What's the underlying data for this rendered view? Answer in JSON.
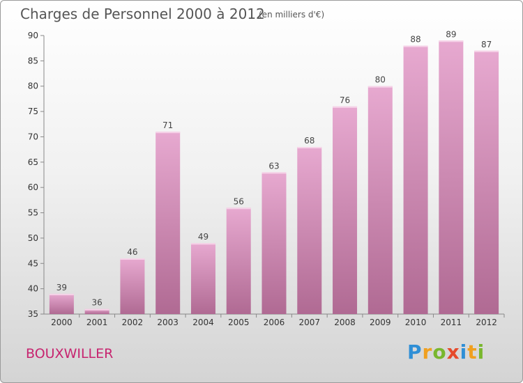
{
  "chart_data": {
    "type": "bar",
    "title": "Charges de Personnel 2000 à 2012",
    "subtitle": "(en milliers d'€)",
    "xlabel": "",
    "ylabel": "",
    "ylim": [
      35,
      90
    ],
    "yticks": [
      35,
      40,
      45,
      50,
      55,
      60,
      65,
      70,
      75,
      80,
      85,
      90
    ],
    "grid": false,
    "categories": [
      "2000",
      "2001",
      "2002",
      "2003",
      "2004",
      "2005",
      "2006",
      "2007",
      "2008",
      "2009",
      "2010",
      "2011",
      "2012"
    ],
    "values": [
      39,
      36,
      46,
      71,
      49,
      56,
      63,
      68,
      76,
      80,
      88,
      89,
      87
    ],
    "bar_color_top": "#e7a9d0",
    "bar_color_bottom": "#b06a93"
  },
  "footer": {
    "location": "BOUXWILLER",
    "logo_text": "Proxiti",
    "location_color": "#c7246f"
  }
}
